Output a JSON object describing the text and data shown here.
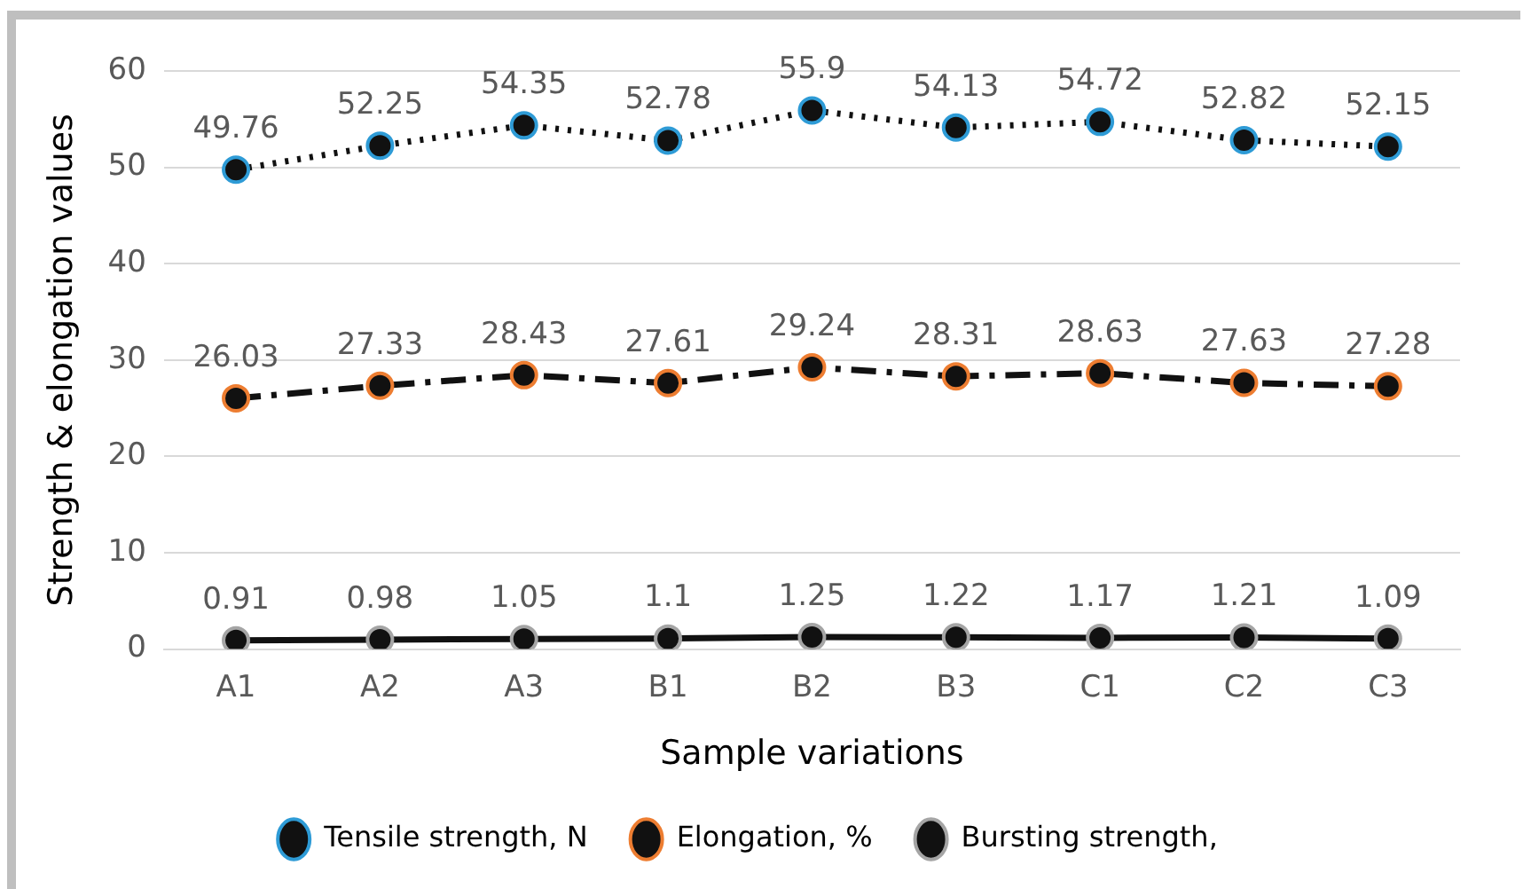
{
  "chart_data": {
    "type": "line",
    "xlabel": "Sample variations",
    "ylabel": "Strength & elongation values",
    "categories": [
      "A1",
      "A2",
      "A3",
      "B1",
      "B2",
      "B3",
      "C1",
      "C2",
      "C3"
    ],
    "series": [
      {
        "name": "Tensile strength, N",
        "color": "#2e9bd6",
        "line_style": "dotted",
        "values": [
          49.76,
          52.25,
          54.35,
          52.78,
          55.9,
          54.13,
          54.72,
          52.82,
          52.15
        ]
      },
      {
        "name": "Elongation, %",
        "color": "#ed7d31",
        "line_style": "dashed",
        "values": [
          26.03,
          27.33,
          28.43,
          27.61,
          29.24,
          28.31,
          28.63,
          27.63,
          27.28
        ]
      },
      {
        "name": "Bursting strength,",
        "color": "#a5a5a5",
        "line_style": "solid",
        "values": [
          0.91,
          0.98,
          1.05,
          1.1,
          1.25,
          1.22,
          1.17,
          1.21,
          1.09
        ]
      }
    ],
    "ylim": [
      0,
      60
    ],
    "yticks": [
      0,
      10,
      20,
      30,
      40,
      50,
      60
    ],
    "grid": "y",
    "legend": "bottom",
    "marker": "circle",
    "data_labels": true
  }
}
